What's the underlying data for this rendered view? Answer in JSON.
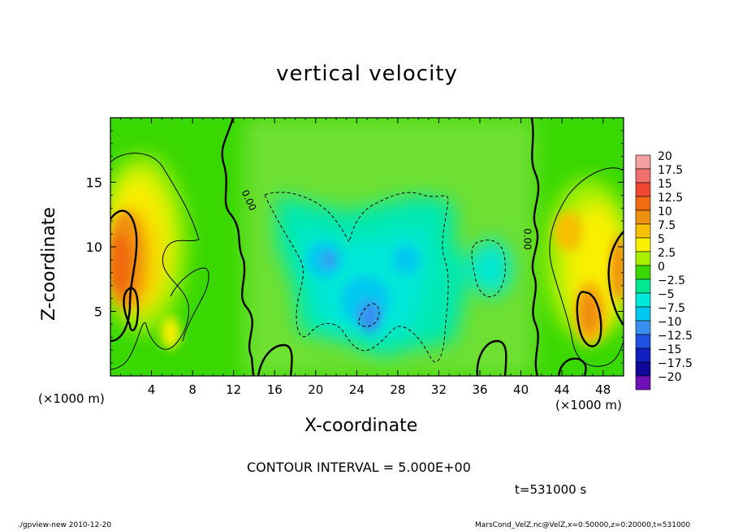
{
  "chart_data": {
    "type": "heatmap",
    "title": "vertical velocity",
    "xlabel": "X-coordinate",
    "ylabel": "Z-coordinate",
    "x_unit_label": "(×1000 m)",
    "x_ticks": [
      4,
      8,
      12,
      16,
      20,
      24,
      28,
      32,
      36,
      40,
      44,
      48
    ],
    "y_ticks": [
      5,
      10,
      15
    ],
    "xlim": [
      0,
      50
    ],
    "ylim": [
      0,
      20
    ],
    "colorbar": {
      "labels": [
        "20",
        "17.5",
        "15",
        "12.5",
        "10",
        "7.5",
        "5",
        "2.5",
        "0",
        "−2.5",
        "−5",
        "−7.5",
        "−10",
        "−12.5",
        "−15",
        "−17.5",
        "−20"
      ],
      "colors": [
        "#f4a0a0",
        "#f07070",
        "#f04830",
        "#f06a10",
        "#f09010",
        "#f8c000",
        "#f8f000",
        "#a8f000",
        "#38d800",
        "#00e890",
        "#00e8d8",
        "#00c8f0",
        "#3890f0",
        "#2050e0",
        "#1020c0",
        "#100898",
        "#7010b8"
      ]
    },
    "contour_interval": "CONTOUR INTERVAL = 5.000E+00",
    "contour_labels": [
      "0.00",
      "0.00"
    ]
  },
  "annotations": {
    "time": "t=531000 s",
    "footer_left": "./gpview-new   2010-12-20",
    "footer_right": "MarsCond_VelZ.nc@VelZ,x=0:50000,z=0:20000,t=531000"
  }
}
